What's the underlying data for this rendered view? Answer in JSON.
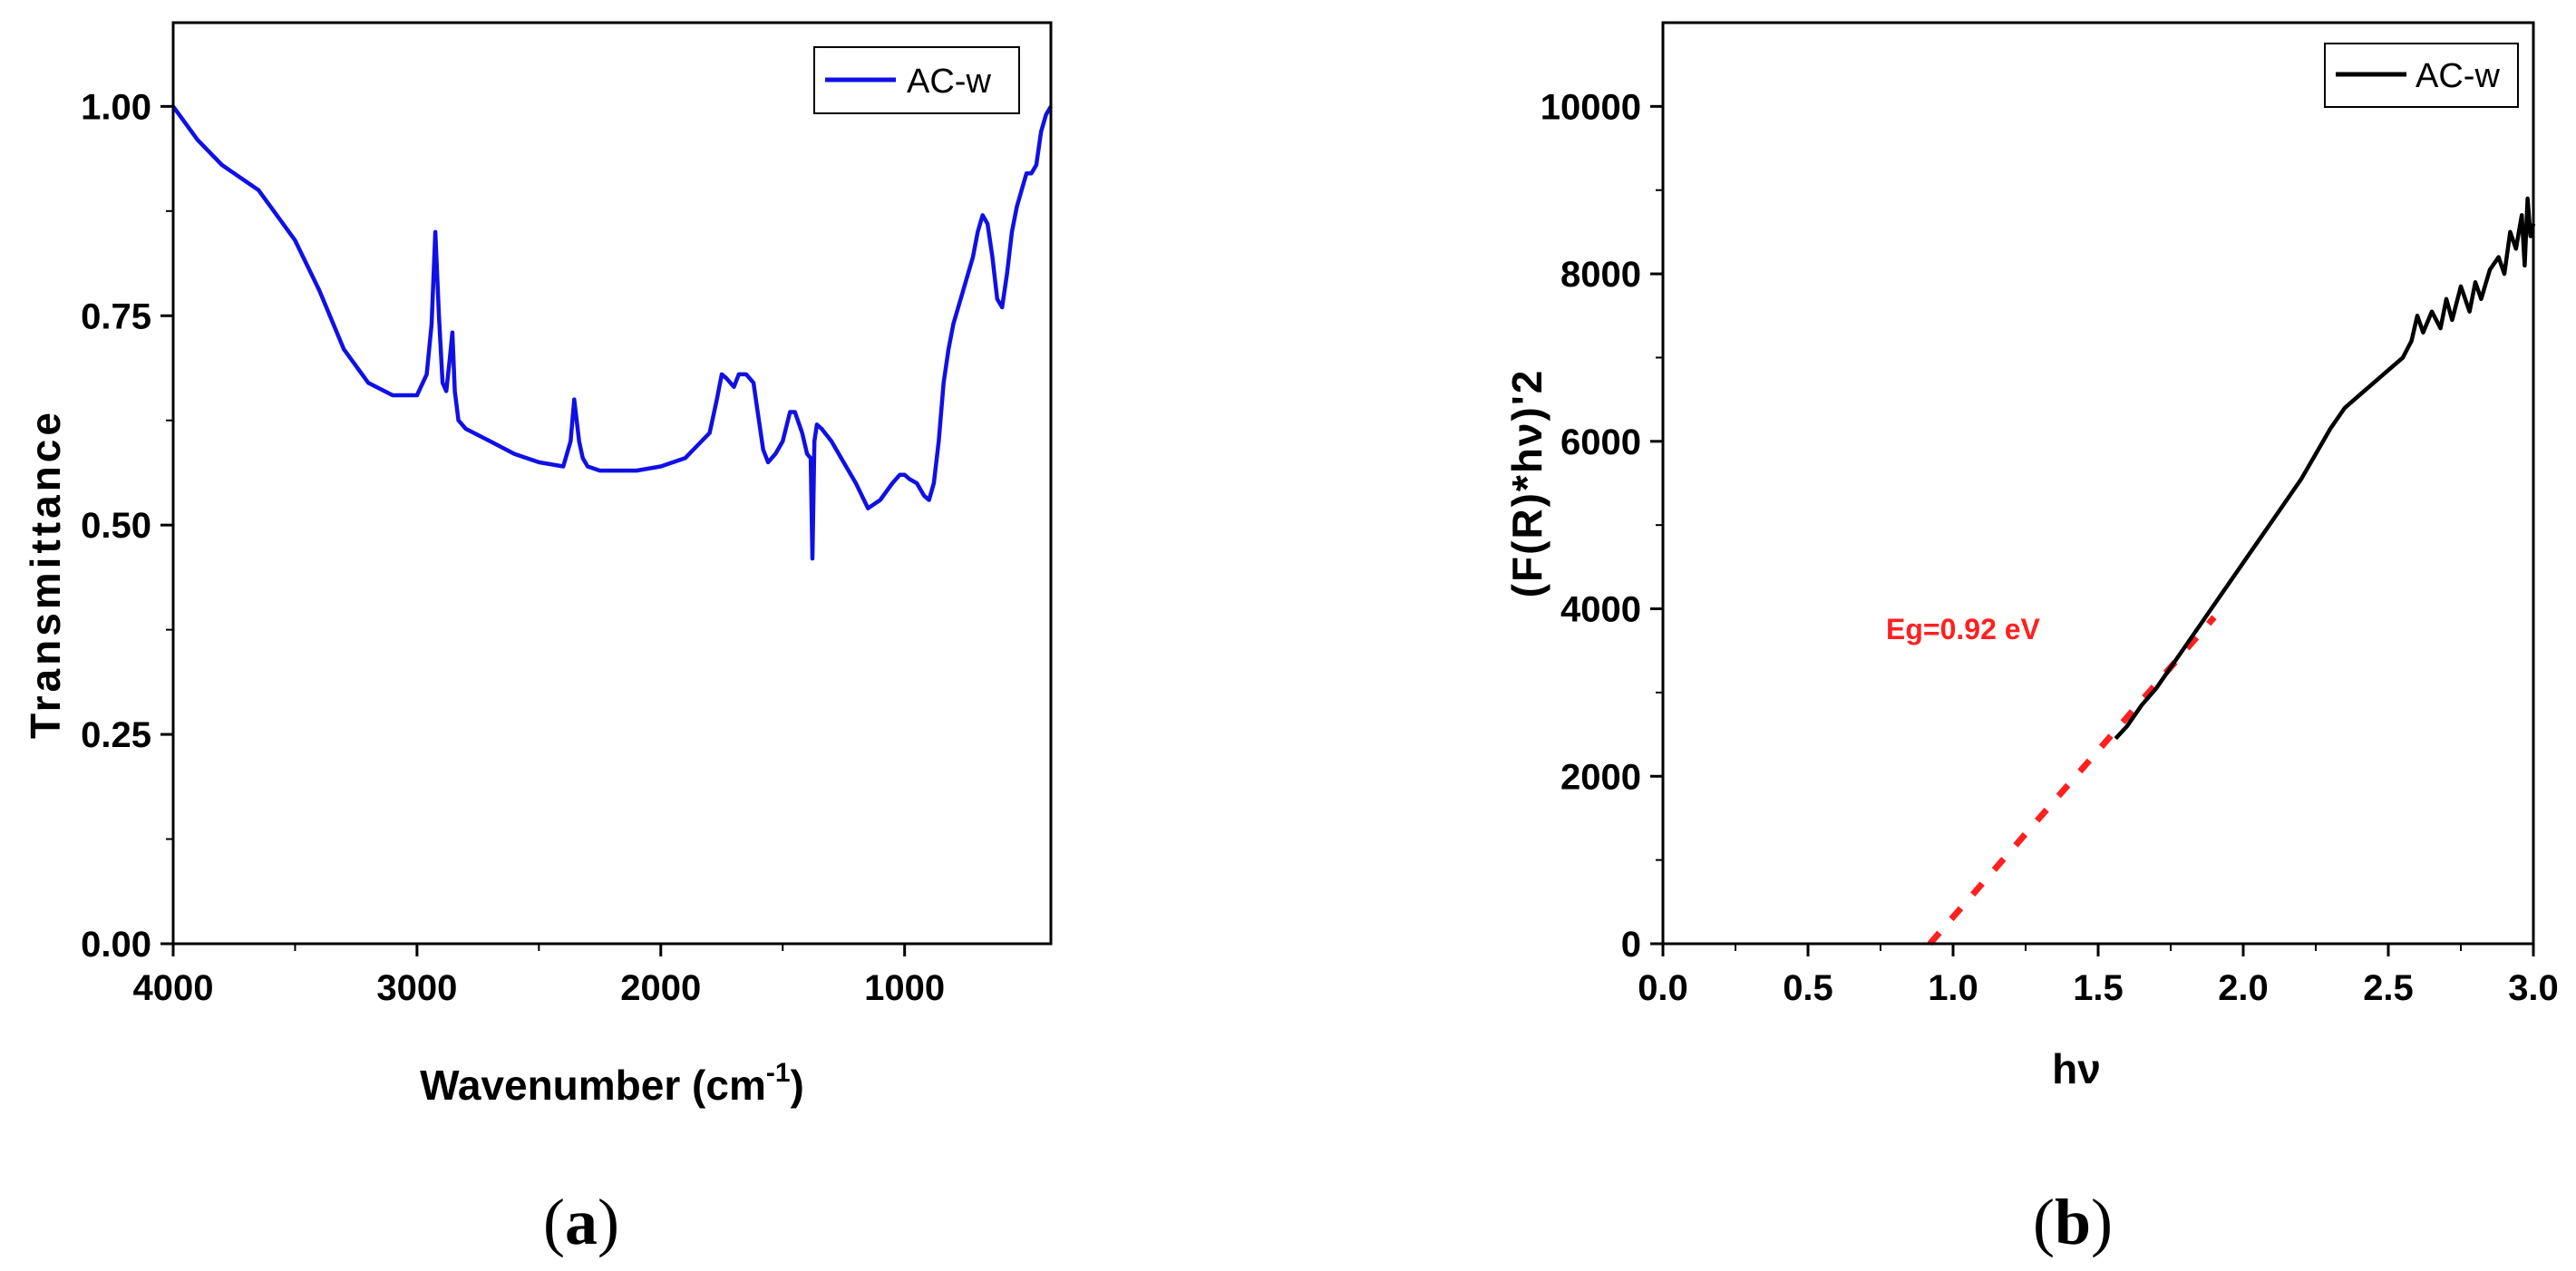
{
  "chart_data": [
    {
      "type": "line",
      "panel_label_open": "(",
      "panel_label_letter": "a",
      "panel_label_close": ")",
      "xlabel": "Wavenumber (cm",
      "xlabel_sup": "-1",
      "xlabel_close": ")",
      "ylabel": "Transmittance",
      "xlim": [
        4000,
        400
      ],
      "ylim": [
        0,
        1.1
      ],
      "xticks": [
        4000,
        3000,
        2000,
        1000
      ],
      "xtick_labels": [
        "4000",
        "3000",
        "2000",
        "1000"
      ],
      "yticks": [
        0,
        0.25,
        0.5,
        0.75,
        1.0
      ],
      "ytick_labels": [
        "0.00",
        "0.25",
        "0.50",
        "0.75",
        "1.00"
      ],
      "legend_position": "top-right",
      "series": [
        {
          "name": "AC-w",
          "color": "#1010e6",
          "x": [
            4000,
            3900,
            3800,
            3700,
            3650,
            3600,
            3500,
            3400,
            3300,
            3200,
            3100,
            3000,
            2960,
            2940,
            2925,
            2910,
            2895,
            2880,
            2865,
            2855,
            2845,
            2830,
            2800,
            2700,
            2600,
            2500,
            2400,
            2370,
            2355,
            2345,
            2335,
            2320,
            2300,
            2250,
            2200,
            2100,
            2000,
            1900,
            1800,
            1770,
            1750,
            1730,
            1700,
            1680,
            1650,
            1620,
            1600,
            1580,
            1560,
            1530,
            1500,
            1470,
            1450,
            1420,
            1400,
            1385,
            1378,
            1370,
            1360,
            1340,
            1300,
            1250,
            1200,
            1150,
            1100,
            1050,
            1020,
            1000,
            980,
            950,
            920,
            900,
            880,
            860,
            840,
            820,
            800,
            760,
            720,
            700,
            680,
            660,
            640,
            620,
            600,
            580,
            560,
            540,
            520,
            500,
            480,
            460,
            440,
            420,
            400
          ],
          "y": [
            1.0,
            0.96,
            0.93,
            0.91,
            0.9,
            0.88,
            0.84,
            0.78,
            0.71,
            0.67,
            0.655,
            0.655,
            0.68,
            0.74,
            0.85,
            0.75,
            0.67,
            0.66,
            0.7,
            0.73,
            0.66,
            0.625,
            0.615,
            0.6,
            0.585,
            0.575,
            0.57,
            0.6,
            0.65,
            0.625,
            0.6,
            0.58,
            0.57,
            0.565,
            0.565,
            0.565,
            0.57,
            0.58,
            0.61,
            0.65,
            0.68,
            0.675,
            0.665,
            0.68,
            0.68,
            0.67,
            0.63,
            0.59,
            0.575,
            0.585,
            0.6,
            0.635,
            0.635,
            0.61,
            0.585,
            0.58,
            0.46,
            0.6,
            0.62,
            0.615,
            0.6,
            0.575,
            0.55,
            0.52,
            0.53,
            0.55,
            0.56,
            0.56,
            0.555,
            0.55,
            0.535,
            0.53,
            0.55,
            0.6,
            0.67,
            0.71,
            0.74,
            0.78,
            0.82,
            0.85,
            0.87,
            0.86,
            0.82,
            0.77,
            0.76,
            0.8,
            0.85,
            0.88,
            0.9,
            0.92,
            0.92,
            0.93,
            0.97,
            0.99,
            1.0
          ]
        }
      ]
    },
    {
      "type": "line",
      "panel_label_open": "(",
      "panel_label_letter": "b",
      "panel_label_close": ")",
      "xlabel": "hν",
      "ylabel": "(F(R)*hν)'2",
      "xlim": [
        0,
        3.0
      ],
      "ylim": [
        0,
        11000
      ],
      "xticks": [
        0,
        0.5,
        1.0,
        1.5,
        2.0,
        2.5,
        3.0
      ],
      "xtick_labels": [
        "0.0",
        "0.5",
        "1.0",
        "1.5",
        "2.0",
        "2.5",
        "3.0"
      ],
      "yticks": [
        0,
        2000,
        4000,
        6000,
        8000,
        10000
      ],
      "ytick_labels": [
        "0",
        "2000",
        "4000",
        "6000",
        "8000",
        "10000"
      ],
      "legend_position": "top-right",
      "annotation": {
        "text": "Eg=0.92 eV",
        "color": "#ff2020",
        "x": 0.92,
        "y": 3700
      },
      "fit_line": {
        "color": "#ff2020",
        "x": [
          0.92,
          1.9
        ],
        "y": [
          0,
          3900
        ]
      },
      "series": [
        {
          "name": "AC-w",
          "color": "#000000",
          "x": [
            1.56,
            1.6,
            1.65,
            1.7,
            1.75,
            1.8,
            1.85,
            1.9,
            1.95,
            2.0,
            2.05,
            2.1,
            2.15,
            2.2,
            2.25,
            2.3,
            2.35,
            2.4,
            2.45,
            2.5,
            2.55,
            2.58,
            2.6,
            2.62,
            2.65,
            2.68,
            2.7,
            2.72,
            2.75,
            2.78,
            2.8,
            2.82,
            2.85,
            2.88,
            2.9,
            2.92,
            2.94,
            2.96,
            2.97,
            2.98,
            2.99,
            3.0
          ],
          "y": [
            2450,
            2600,
            2850,
            3050,
            3300,
            3550,
            3800,
            4050,
            4300,
            4550,
            4800,
            5050,
            5300,
            5550,
            5850,
            6150,
            6400,
            6550,
            6700,
            6850,
            7000,
            7200,
            7500,
            7300,
            7550,
            7350,
            7700,
            7450,
            7850,
            7550,
            7900,
            7700,
            8050,
            8200,
            8000,
            8500,
            8300,
            8700,
            8100,
            8900,
            8450,
            8600
          ]
        }
      ]
    }
  ]
}
